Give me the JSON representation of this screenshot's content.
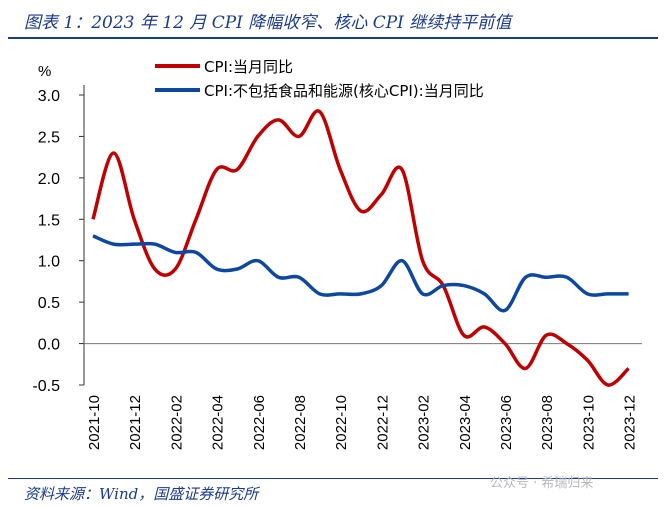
{
  "title": "图表 1：2023 年 12 月 CPI 降幅收窄、核心 CPI 继续持平前值",
  "source": "资料来源：Wind，国盛证券研究所",
  "watermark": "公众号 · 希瑞归来",
  "chart_data": {
    "type": "line",
    "ylabel": "%",
    "ylim": [
      -0.5,
      3.0
    ],
    "yticks": [
      "3.0",
      "2.5",
      "2.0",
      "1.5",
      "1.0",
      "0.5",
      "0.0",
      "-0.5"
    ],
    "x": [
      "2021-10",
      "2021-11",
      "2021-12",
      "2022-01",
      "2022-02",
      "2022-03",
      "2022-04",
      "2022-05",
      "2022-06",
      "2022-07",
      "2022-08",
      "2022-09",
      "2022-10",
      "2022-11",
      "2022-12",
      "2023-01",
      "2023-02",
      "2023-03",
      "2023-04",
      "2023-05",
      "2023-06",
      "2023-07",
      "2023-08",
      "2023-09",
      "2023-10",
      "2023-11",
      "2023-12"
    ],
    "xticks": [
      "2021-10",
      "2021-12",
      "2022-02",
      "2022-04",
      "2022-06",
      "2022-08",
      "2022-10",
      "2022-12",
      "2023-02",
      "2023-04",
      "2023-06",
      "2023-08",
      "2023-10",
      "2023-12"
    ],
    "legend": "top",
    "series": [
      {
        "name": "CPI:当月同比",
        "color": "#c00000",
        "values": [
          1.5,
          2.3,
          1.5,
          0.9,
          0.9,
          1.5,
          2.1,
          2.1,
          2.5,
          2.7,
          2.5,
          2.8,
          2.1,
          1.6,
          1.8,
          2.1,
          1.0,
          0.7,
          0.1,
          0.2,
          0.0,
          -0.3,
          0.1,
          0.0,
          -0.2,
          -0.5,
          -0.3
        ]
      },
      {
        "name": "CPI:不包括食品和能源(核心CPI):当月同比",
        "color": "#0d47a1",
        "values": [
          1.3,
          1.2,
          1.2,
          1.2,
          1.1,
          1.1,
          0.9,
          0.9,
          1.0,
          0.8,
          0.8,
          0.6,
          0.6,
          0.6,
          0.7,
          1.0,
          0.6,
          0.7,
          0.7,
          0.6,
          0.4,
          0.8,
          0.8,
          0.8,
          0.6,
          0.6,
          0.6
        ]
      }
    ]
  }
}
